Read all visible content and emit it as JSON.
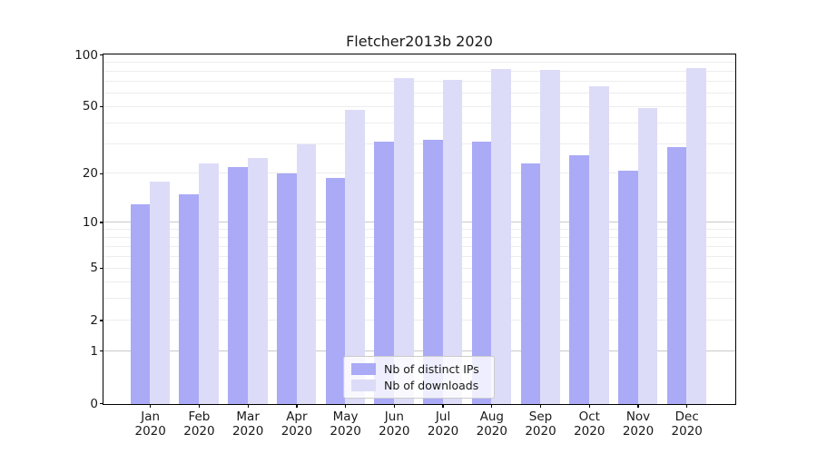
{
  "chart_data": {
    "type": "bar",
    "title": "Fletcher2013b 2020",
    "x_labels": [
      [
        "Jan",
        "2020"
      ],
      [
        "Feb",
        "2020"
      ],
      [
        "Mar",
        "2020"
      ],
      [
        "Apr",
        "2020"
      ],
      [
        "May",
        "2020"
      ],
      [
        "Jun",
        "2020"
      ],
      [
        "Jul",
        "2020"
      ],
      [
        "Aug",
        "2020"
      ],
      [
        "Sep",
        "2020"
      ],
      [
        "Oct",
        "2020"
      ],
      [
        "Nov",
        "2020"
      ],
      [
        "Dec",
        "2020"
      ]
    ],
    "series": [
      {
        "name": "Nb of distinct IPs",
        "color": "#aaaaf7",
        "values": [
          13,
          15,
          22,
          20,
          19,
          31,
          32,
          31,
          23,
          26,
          21,
          29
        ]
      },
      {
        "name": "Nb of downloads",
        "color": "#dcdcf8",
        "values": [
          18,
          23,
          25,
          30,
          48,
          74,
          72,
          83,
          82,
          66,
          49,
          84
        ]
      }
    ],
    "y_axis": {
      "scale": "log1p",
      "range": [
        0,
        100
      ],
      "tick_labels": [
        0,
        1,
        2,
        5,
        10,
        20,
        50,
        100
      ],
      "major_gridlines": [
        1,
        10
      ],
      "minor_gridlines": [
        2,
        3,
        4,
        5,
        6,
        7,
        8,
        9,
        20,
        30,
        40,
        50,
        60,
        70,
        80,
        90
      ]
    },
    "legend": {
      "position": "lower-center",
      "entries": [
        "Nb of distinct IPs",
        "Nb of downloads"
      ]
    },
    "grid": true
  },
  "colors": {
    "background": "#ffffff",
    "frame": "#000000",
    "text": "#1a1a1a",
    "major_grid": "#c9c9c9",
    "minor_grid": "#ededed",
    "legend_border": "#cccccc"
  }
}
